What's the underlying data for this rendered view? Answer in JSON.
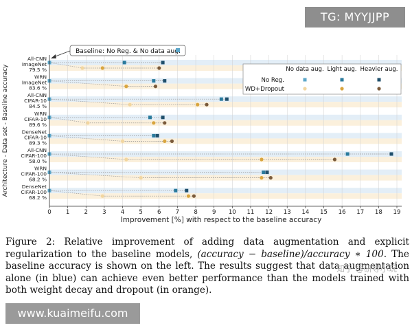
{
  "chart_data": {
    "type": "scatter",
    "xlabel": "Improvement [%] with respect to the baseline accuracy",
    "ylabel": "Architecture - Data set - Baseline accuracy",
    "xlim": [
      0,
      19
    ],
    "xticks": [
      0,
      1,
      2,
      3,
      4,
      5,
      6,
      7,
      8,
      9,
      10,
      11,
      12,
      13,
      14,
      15,
      16,
      17,
      18,
      19
    ],
    "baseline_label": "Baseline: No Reg. & No data aug.",
    "legend": {
      "headers": [
        "No data aug.",
        "Light aug.",
        "Heavier aug."
      ],
      "rows": [
        "No Reg.",
        "WD+Dropout"
      ]
    },
    "colors": {
      "no_reg": [
        "#5da7c9",
        "#2a7a9c",
        "#1f4f6b"
      ],
      "wd_dropout": [
        "#f2d6a0",
        "#d9a53e",
        "#7a5a3a"
      ],
      "band_blue": "#e3eef7",
      "band_orange": "#fbf0dc"
    },
    "models": [
      {
        "arch": "All-CNN",
        "dataset": "ImageNet",
        "baseline": "79.5 %",
        "no_reg": [
          null,
          4.1,
          6.2
        ],
        "wd_dropout": [
          1.8,
          2.9,
          6.0
        ]
      },
      {
        "arch": "WRN",
        "dataset": "ImageNet",
        "baseline": "83.6 %",
        "no_reg": [
          null,
          5.7,
          6.3
        ],
        "wd_dropout": [
          null,
          4.2,
          5.8
        ]
      },
      {
        "arch": "All-CNN",
        "dataset": "CIFAR-10",
        "baseline": "84.5 %",
        "no_reg": [
          null,
          9.4,
          9.7
        ],
        "wd_dropout": [
          4.4,
          8.1,
          8.6
        ]
      },
      {
        "arch": "WRN",
        "dataset": "CIFAR-10",
        "baseline": "89.6 %",
        "no_reg": [
          null,
          5.5,
          6.2
        ],
        "wd_dropout": [
          2.1,
          5.7,
          6.3
        ]
      },
      {
        "arch": "DenseNet",
        "dataset": "CIFAR-10",
        "baseline": "89.3 %",
        "no_reg": [
          null,
          5.7,
          5.9
        ],
        "wd_dropout": [
          4.0,
          6.3,
          6.7
        ]
      },
      {
        "arch": "All-CNN",
        "dataset": "CIFAR-100",
        "baseline": "58.0 %",
        "no_reg": [
          null,
          16.3,
          18.7
        ],
        "wd_dropout": [
          4.2,
          11.6,
          15.6
        ]
      },
      {
        "arch": "WRN",
        "dataset": "CIFAR-100",
        "baseline": "68.2 %",
        "no_reg": [
          null,
          11.7,
          11.9
        ],
        "wd_dropout": [
          5.0,
          11.6,
          12.1
        ]
      },
      {
        "arch": "DenseNet",
        "dataset": "CIFAR-100",
        "baseline": "68.2 %",
        "no_reg": [
          null,
          6.9,
          7.5
        ],
        "wd_dropout": [
          2.9,
          7.6,
          7.9
        ]
      }
    ]
  },
  "caption": {
    "part1": "Figure 2: Relative improvement of adding data augmentation and explicit regularization to the baseline models, ",
    "formula": "(accuracy − baseline)/accuracy ∗ 100",
    "part2": ". The baseline accuracy is shown on the left. The results suggest that data augmentation alone (in blue) can achieve even better performance than the models trained with both weight decay and dropout (in orange)."
  },
  "watermarks": {
    "top": "TG: MYYJJPP",
    "bottom": "www.kuaimeifu.com",
    "corner": "知乎 @研导小玩"
  }
}
